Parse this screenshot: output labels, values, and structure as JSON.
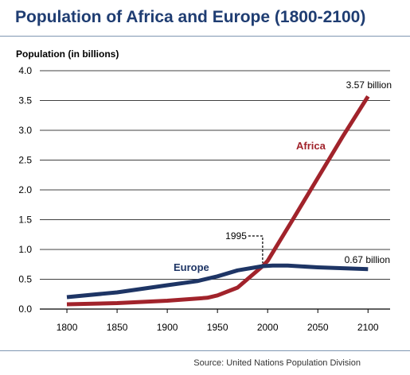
{
  "title": "Population of Africa and Europe (1800-2100)",
  "source": "Source: United Nations Population Division",
  "colors": {
    "title": "#1f3d72",
    "africa": "#a1232b",
    "europe": "#1e3565",
    "grid": "#000000",
    "rule": "#7f97b2"
  },
  "chart_data": {
    "type": "line",
    "title": "Population of Africa and Europe (1800-2100)",
    "ylabel": "Population (in billions)",
    "xlabel": "",
    "xlim": [
      1773,
      2122
    ],
    "ylim": [
      0,
      4
    ],
    "x_ticks": [
      1800,
      1850,
      1900,
      1950,
      2000,
      2050,
      2100
    ],
    "y_ticks": [
      {
        "value": 0,
        "label": "0.0"
      },
      {
        "value": 0.5,
        "label": "0.5"
      },
      {
        "value": 1.0,
        "label": "1.0"
      },
      {
        "value": 1.5,
        "label": "1.5"
      },
      {
        "value": 2.0,
        "label": "2.0"
      },
      {
        "value": 2.5,
        "label": "2.5"
      },
      {
        "value": 3.0,
        "label": "3.0"
      },
      {
        "value": 3.5,
        "label": "3.5"
      },
      {
        "value": 4.0,
        "label": "4.0"
      }
    ],
    "grid": "horizontal",
    "series": [
      {
        "name": "Africa",
        "color": "#a1232b",
        "points": [
          [
            1800,
            0.08
          ],
          [
            1850,
            0.1
          ],
          [
            1900,
            0.14
          ],
          [
            1940,
            0.19
          ],
          [
            1950,
            0.23
          ],
          [
            1970,
            0.36
          ],
          [
            1995,
            0.72
          ],
          [
            2000,
            0.81
          ],
          [
            2025,
            1.5
          ],
          [
            2050,
            2.2
          ],
          [
            2075,
            2.9
          ],
          [
            2100,
            3.57
          ]
        ]
      },
      {
        "name": "Europe",
        "color": "#1e3565",
        "points": [
          [
            1800,
            0.2
          ],
          [
            1850,
            0.28
          ],
          [
            1900,
            0.4
          ],
          [
            1930,
            0.47
          ],
          [
            1950,
            0.55
          ],
          [
            1970,
            0.65
          ],
          [
            1995,
            0.72
          ],
          [
            2005,
            0.73
          ],
          [
            2020,
            0.73
          ],
          [
            2050,
            0.7
          ],
          [
            2100,
            0.67
          ]
        ]
      }
    ],
    "annotations": [
      {
        "id": "africa-end",
        "text": "3.57 billion",
        "x": 2100,
        "y": 3.57
      },
      {
        "id": "europe-end",
        "text": "0.67 billion",
        "x": 2100,
        "y": 0.67
      },
      {
        "id": "crossover",
        "text": "1995",
        "x": 1995,
        "y": 0.72
      }
    ]
  }
}
